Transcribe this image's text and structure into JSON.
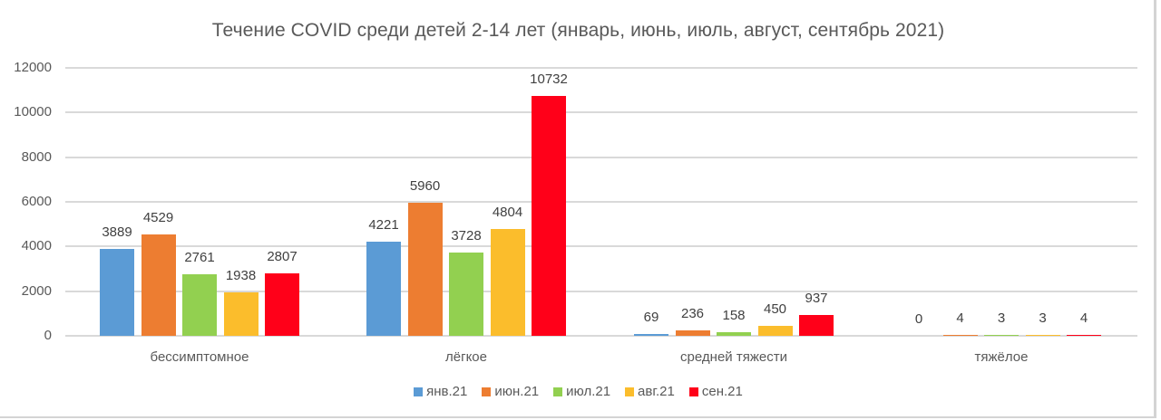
{
  "chart_data": {
    "type": "bar",
    "title": "Течение COVID среди детей 2-14 лет (январь, июнь, июль, август, сентябрь 2021)",
    "xlabel": "",
    "ylabel": "",
    "ylim": [
      0,
      12000
    ],
    "yticks": [
      0,
      2000,
      4000,
      6000,
      8000,
      10000,
      12000
    ],
    "grid": true,
    "legend_position": "bottom",
    "categories": [
      "бессимптомное",
      "лёгкое",
      "средней тяжести",
      "тяжёлое"
    ],
    "series": [
      {
        "name": "янв.21",
        "color": "#5b9bd5",
        "values": [
          3889,
          4221,
          69,
          0
        ]
      },
      {
        "name": "июн.21",
        "color": "#ed7d31",
        "values": [
          4529,
          5960,
          236,
          4
        ]
      },
      {
        "name": "июл.21",
        "color": "#92d050",
        "values": [
          2761,
          3728,
          158,
          3
        ]
      },
      {
        "name": "авг.21",
        "color": "#fbbd2c",
        "values": [
          1938,
          4804,
          450,
          3
        ]
      },
      {
        "name": "сен.21",
        "color": "#ff0019",
        "values": [
          2807,
          10732,
          937,
          4
        ]
      }
    ]
  }
}
